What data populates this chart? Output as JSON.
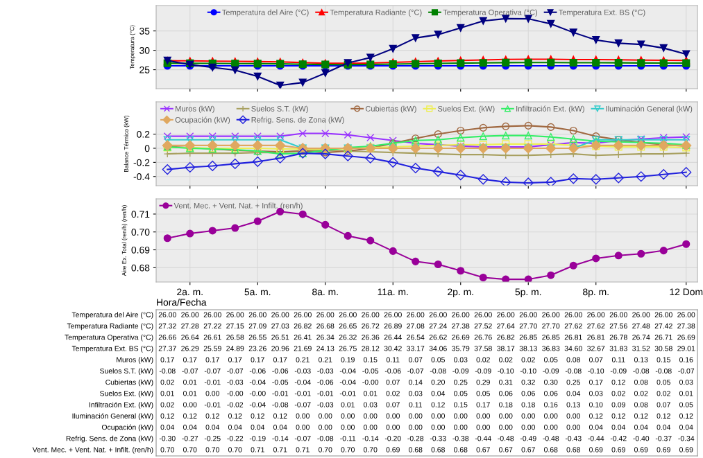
{
  "chart_data": [
    {
      "type": "line",
      "ylabel": "Temperatura (°C)",
      "categories": [
        null,
        null,
        null,
        null,
        null,
        null,
        null,
        null,
        null,
        null,
        null,
        null,
        null,
        null,
        null,
        null,
        null,
        null,
        null,
        null,
        null,
        null,
        null,
        null
      ],
      "ylim": [
        20.1,
        41.55
      ],
      "yticks": [
        25,
        30,
        35
      ],
      "grid": true,
      "legend": "top",
      "tick_labels": "y",
      "series": [
        {
          "name": "Temperatura del Aire (°C)",
          "color": "#0000ff",
          "marker": "circle",
          "values": [
            26.0,
            26.0,
            26.0,
            26.0,
            26.0,
            26.0,
            26.0,
            26.0,
            26.0,
            26.0,
            26.0,
            26.0,
            26.0,
            26.0,
            26.0,
            26.0,
            26.0,
            26.0,
            26.0,
            26.0,
            26.0,
            26.0,
            26.0,
            26.0
          ],
          "value_labels": [
            "26.00",
            "26.00",
            "26.00",
            "26.00",
            "26.00",
            "26.00",
            "26.00",
            "26.00",
            "26.00",
            "26.00",
            "26.00",
            "26.00",
            "26.00",
            "26.00",
            "26.00",
            "26.00",
            "26.00",
            "26.00",
            "26.00",
            "26.00",
            "26.00",
            "26.00",
            "26.00",
            "26.00"
          ]
        },
        {
          "name": "Temperatura Radiante (°C)",
          "color": "#ff0000",
          "marker": "triangle",
          "values": [
            27.32,
            27.28,
            27.22,
            27.15,
            27.09,
            27.03,
            26.82,
            26.68,
            26.65,
            26.72,
            26.89,
            27.08,
            27.24,
            27.38,
            27.52,
            27.64,
            27.7,
            27.7,
            27.62,
            27.62,
            27.56,
            27.48,
            27.42,
            27.38
          ],
          "value_labels": [
            "27.32",
            "27.28",
            "27.22",
            "27.15",
            "27.09",
            "27.03",
            "26.82",
            "26.68",
            "26.65",
            "26.72",
            "26.89",
            "27.08",
            "27.24",
            "27.38",
            "27.52",
            "27.64",
            "27.70",
            "27.70",
            "27.62",
            "27.62",
            "27.56",
            "27.48",
            "27.42",
            "27.38"
          ]
        },
        {
          "name": "Temperatura Operativa (°C)",
          "color": "#008000",
          "marker": "square",
          "values": [
            26.66,
            26.64,
            26.61,
            26.58,
            26.55,
            26.51,
            26.41,
            26.34,
            26.32,
            26.36,
            26.44,
            26.54,
            26.62,
            26.69,
            26.76,
            26.82,
            26.85,
            26.85,
            26.81,
            26.81,
            26.78,
            26.74,
            26.71,
            26.69
          ],
          "value_labels": [
            "26.66",
            "26.64",
            "26.61",
            "26.58",
            "26.55",
            "26.51",
            "26.41",
            "26.34",
            "26.32",
            "26.36",
            "26.44",
            "26.54",
            "26.62",
            "26.69",
            "26.76",
            "26.82",
            "26.85",
            "26.85",
            "26.81",
            "26.81",
            "26.78",
            "26.74",
            "26.71",
            "26.69"
          ]
        },
        {
          "name": "Temperatura Ext. BS (°C)",
          "color": "#000080",
          "marker": "triangle-down",
          "values": [
            27.37,
            26.29,
            25.59,
            24.89,
            23.26,
            20.96,
            21.69,
            24.13,
            26.75,
            28.12,
            30.42,
            33.17,
            34.06,
            35.79,
            37.58,
            38.17,
            38.13,
            36.83,
            34.6,
            32.67,
            31.83,
            31.52,
            30.58,
            29.01
          ],
          "value_labels": [
            "27.37",
            "26.29",
            "25.59",
            "24.89",
            "23.26",
            "20.96",
            "21.69",
            "24.13",
            "26.75",
            "28.12",
            "30.42",
            "33.17",
            "34.06",
            "35.79",
            "37.58",
            "38.17",
            "38.13",
            "36.83",
            "34.60",
            "32.67",
            "31.83",
            "31.52",
            "30.58",
            "29.01"
          ]
        }
      ]
    },
    {
      "type": "line",
      "ylabel": "Balance Térmico (kW)",
      "categories": [
        null,
        null,
        null,
        null,
        null,
        null,
        null,
        null,
        null,
        null,
        null,
        null,
        null,
        null,
        null,
        null,
        null,
        null,
        null,
        null,
        null,
        null,
        null,
        null
      ],
      "ylim": [
        -0.53,
        0.657
      ],
      "yticks": [
        {
          "value": -0.4,
          "label": "-0.4"
        },
        {
          "value": -0.2,
          "label": "-0.2"
        },
        0,
        0.2
      ],
      "grid": true,
      "legend": "top",
      "tick_labels": "y",
      "series": [
        {
          "name": "Muros (kW)",
          "color": "#9933ff",
          "marker": "cross",
          "values": [
            0.17,
            0.17,
            0.17,
            0.17,
            0.17,
            0.17,
            0.21,
            0.21,
            0.19,
            0.15,
            0.11,
            0.07,
            0.05,
            0.03,
            0.02,
            0.02,
            0.02,
            0.05,
            0.08,
            0.07,
            0.11,
            0.13,
            0.15,
            0.16
          ],
          "value_labels": [
            "0.17",
            "0.17",
            "0.17",
            "0.17",
            "0.17",
            "0.17",
            "0.21",
            "0.21",
            "0.19",
            "0.15",
            "0.11",
            "0.07",
            "0.05",
            "0.03",
            "0.02",
            "0.02",
            "0.02",
            "0.05",
            "0.08",
            "0.07",
            "0.11",
            "0.13",
            "0.15",
            "0.16"
          ]
        },
        {
          "name": "Suelos S.T. (kW)",
          "color": "#a8a060",
          "marker": "plus",
          "values": [
            -0.08,
            -0.07,
            -0.07,
            -0.07,
            -0.06,
            -0.06,
            -0.03,
            -0.03,
            -0.04,
            -0.05,
            -0.06,
            -0.07,
            -0.08,
            -0.09,
            -0.09,
            -0.1,
            -0.1,
            -0.09,
            -0.08,
            -0.1,
            -0.09,
            -0.08,
            -0.08,
            -0.07
          ],
          "value_labels": [
            "-0.08",
            "-0.07",
            "-0.07",
            "-0.07",
            "-0.06",
            "-0.06",
            "-0.03",
            "-0.03",
            "-0.04",
            "-0.05",
            "-0.06",
            "-0.07",
            "-0.08",
            "-0.09",
            "-0.09",
            "-0.10",
            "-0.10",
            "-0.09",
            "-0.08",
            "-0.10",
            "-0.09",
            "-0.08",
            "-0.08",
            "-0.07"
          ]
        },
        {
          "name": "Cubiertas (kW)",
          "color": "#a06840",
          "marker": "circle-open",
          "values": [
            0.02,
            0.01,
            -0.01,
            -0.03,
            -0.04,
            -0.05,
            -0.04,
            -0.06,
            -0.04,
            -0.0,
            0.07,
            0.14,
            0.2,
            0.25,
            0.29,
            0.31,
            0.32,
            0.3,
            0.25,
            0.17,
            0.12,
            0.08,
            0.05,
            0.03
          ],
          "value_labels": [
            "0.02",
            "0.01",
            "-0.01",
            "-0.03",
            "-0.04",
            "-0.05",
            "-0.04",
            "-0.06",
            "-0.04",
            "-0.00",
            "0.07",
            "0.14",
            "0.20",
            "0.25",
            "0.29",
            "0.31",
            "0.32",
            "0.30",
            "0.25",
            "0.17",
            "0.12",
            "0.08",
            "0.05",
            "0.03"
          ]
        },
        {
          "name": "Suelos Ext. (kW)",
          "color": "#eeee55",
          "marker": "square-open",
          "values": [
            0.01,
            0.01,
            0.0,
            -0.0,
            -0.0,
            -0.01,
            -0.01,
            -0.01,
            -0.01,
            0.01,
            0.02,
            0.03,
            0.04,
            0.05,
            0.05,
            0.06,
            0.06,
            0.06,
            0.04,
            0.03,
            0.02,
            0.02,
            0.02,
            0.01
          ],
          "value_labels": [
            "0.01",
            "0.01",
            "0.00",
            "-0.00",
            "-0.00",
            "-0.01",
            "-0.01",
            "-0.01",
            "-0.01",
            "0.01",
            "0.02",
            "0.03",
            "0.04",
            "0.05",
            "0.05",
            "0.06",
            "0.06",
            "0.06",
            "0.04",
            "0.03",
            "0.02",
            "0.02",
            "0.02",
            "0.01"
          ]
        },
        {
          "name": "Infiltración Ext. (kW)",
          "color": "#33ee66",
          "marker": "triangle-open",
          "values": [
            0.02,
            0.0,
            -0.01,
            -0.02,
            -0.04,
            -0.08,
            -0.07,
            -0.03,
            0.01,
            0.03,
            0.07,
            0.11,
            0.12,
            0.15,
            0.17,
            0.18,
            0.18,
            0.16,
            0.13,
            0.1,
            0.09,
            0.08,
            0.07,
            0.05
          ],
          "value_labels": [
            "0.02",
            "0.00",
            "-0.01",
            "-0.02",
            "-0.04",
            "-0.08",
            "-0.07",
            "-0.03",
            "0.01",
            "0.03",
            "0.07",
            "0.11",
            "0.12",
            "0.15",
            "0.17",
            "0.18",
            "0.18",
            "0.16",
            "0.13",
            "0.10",
            "0.09",
            "0.08",
            "0.07",
            "0.05"
          ]
        },
        {
          "name": "Iluminación General (kW)",
          "color": "#33cccc",
          "marker": "triangle-down-open",
          "values": [
            0.12,
            0.12,
            0.12,
            0.12,
            0.12,
            0.12,
            0.0,
            0.0,
            0.0,
            0.0,
            0.0,
            0.0,
            0.0,
            0.0,
            0.0,
            0.0,
            0.0,
            0.0,
            0.0,
            0.12,
            0.12,
            0.12,
            0.12,
            0.12
          ],
          "value_labels": [
            "0.12",
            "0.12",
            "0.12",
            "0.12",
            "0.12",
            "0.12",
            "0.00",
            "0.00",
            "0.00",
            "0.00",
            "0.00",
            "0.00",
            "0.00",
            "0.00",
            "0.00",
            "0.00",
            "0.00",
            "0.00",
            "0.00",
            "0.12",
            "0.12",
            "0.12",
            "0.12",
            "0.12"
          ]
        },
        {
          "name": "Ocupación (kW)",
          "color": "#e0a860",
          "marker": "diamond",
          "values": [
            0.04,
            0.04,
            0.04,
            0.04,
            0.04,
            0.04,
            0.0,
            0.0,
            0.0,
            0.0,
            0.0,
            0.0,
            0.0,
            0.0,
            0.0,
            0.0,
            0.0,
            0.0,
            0.0,
            0.04,
            0.04,
            0.04,
            0.04,
            0.04
          ],
          "value_labels": [
            "0.04",
            "0.04",
            "0.04",
            "0.04",
            "0.04",
            "0.04",
            "0.00",
            "0.00",
            "0.00",
            "0.00",
            "0.00",
            "0.00",
            "0.00",
            "0.00",
            "0.00",
            "0.00",
            "0.00",
            "0.00",
            "0.00",
            "0.04",
            "0.04",
            "0.04",
            "0.04",
            "0.04"
          ]
        },
        {
          "name": "Refrig. Sens. de Zona (kW)",
          "color": "#2222dd",
          "marker": "diamond-open",
          "values": [
            -0.3,
            -0.27,
            -0.25,
            -0.22,
            -0.19,
            -0.14,
            -0.07,
            -0.08,
            -0.11,
            -0.14,
            -0.2,
            -0.28,
            -0.33,
            -0.38,
            -0.44,
            -0.48,
            -0.49,
            -0.48,
            -0.43,
            -0.44,
            -0.42,
            -0.4,
            -0.37,
            -0.34
          ],
          "value_labels": [
            "-0.30",
            "-0.27",
            "-0.25",
            "-0.22",
            "-0.19",
            "-0.14",
            "-0.07",
            "-0.08",
            "-0.11",
            "-0.14",
            "-0.20",
            "-0.28",
            "-0.33",
            "-0.38",
            "-0.44",
            "-0.48",
            "-0.49",
            "-0.48",
            "-0.43",
            "-0.44",
            "-0.42",
            "-0.40",
            "-0.37",
            "-0.34"
          ]
        }
      ]
    },
    {
      "type": "line",
      "ylabel": "Aire Ex. Total (ren/h) (ren/h)",
      "xlabel": "Hora/Fecha",
      "categories": [
        null,
        "2a. m.",
        null,
        null,
        "5a. m.",
        null,
        null,
        "8a. m.",
        null,
        null,
        "11a. m.",
        null,
        null,
        "2p. m.",
        null,
        null,
        "5p. m.",
        null,
        null,
        "8p. m.",
        null,
        null,
        null,
        "12 Dom"
      ],
      "ylim": [
        0.672,
        0.7185
      ],
      "yticks": [
        {
          "value": 0.68,
          "label": "0.68"
        },
        {
          "value": 0.69,
          "label": "0.69"
        },
        {
          "value": 0.7,
          "label": "0.70"
        },
        {
          "value": 0.71,
          "label": "0.71"
        }
      ],
      "grid": true,
      "legend": "top left",
      "series": [
        {
          "name": "Vent. Mec. + Vent. Nat. + Infilt. (ren/h)",
          "color": "#990099",
          "marker": "circle",
          "values": [
            0.6965,
            0.6991,
            0.7007,
            0.7022,
            0.706,
            0.7114,
            0.7099,
            0.704,
            0.6978,
            0.6952,
            0.6893,
            0.6835,
            0.6819,
            0.6783,
            0.6745,
            0.6735,
            0.6735,
            0.6758,
            0.6812,
            0.6852,
            0.6868,
            0.6878,
            0.6896,
            0.6932
          ],
          "value_labels": [
            "0.70",
            "0.70",
            "0.70",
            "0.70",
            "0.71",
            "0.71",
            "0.71",
            "0.70",
            "0.70",
            "0.70",
            "0.69",
            "0.68",
            "0.68",
            "0.68",
            "0.67",
            "0.67",
            "0.67",
            "0.68",
            "0.68",
            "0.69",
            "0.69",
            "0.69",
            "0.69",
            "0.69"
          ]
        }
      ]
    }
  ]
}
